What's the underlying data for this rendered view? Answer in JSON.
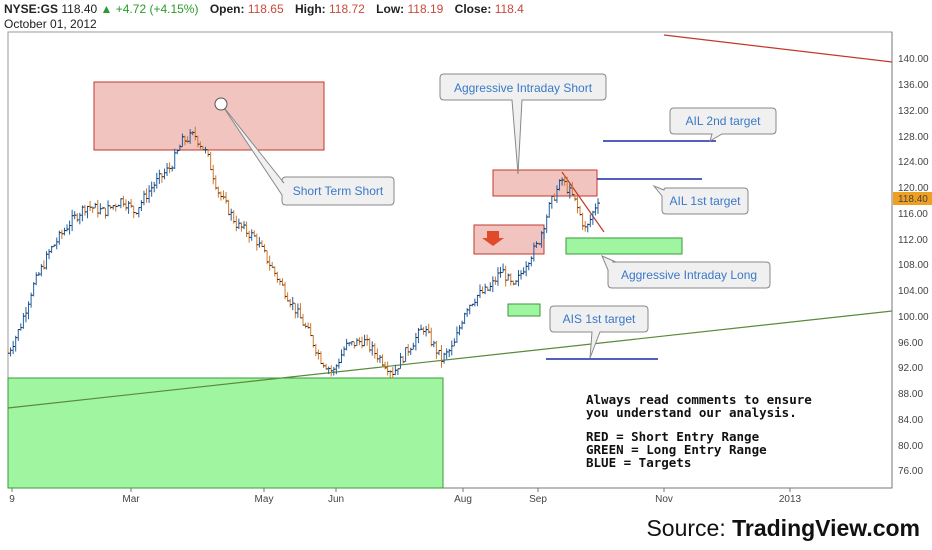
{
  "header": {
    "symbol": "NYSE:GS",
    "last": "118.40",
    "change_arrow": "▲",
    "change": "+4.72 (+4.15%)",
    "open_label": "Open:",
    "open": "118.65",
    "high_label": "High:",
    "high": "118.72",
    "low_label": "Low:",
    "low": "118.19",
    "close_label": "Close:",
    "close": "118.4",
    "date": "October 01, 2012"
  },
  "source": {
    "prefix": "Source: ",
    "brand": "TradingView.com"
  },
  "chart_data": {
    "type": "line",
    "ylim": [
      73,
      144
    ],
    "y_ticks": [
      "140.00",
      "136.00",
      "132.00",
      "128.00",
      "124.00",
      "120.00",
      "116.00",
      "112.00",
      "108.00",
      "104.00",
      "100.00",
      "96.00",
      "92.00",
      "88.00",
      "84.00",
      "80.00",
      "76.00"
    ],
    "price_marker": "118.40",
    "x_tick_labels": [
      "9",
      "Mar",
      "May",
      "Jun",
      "Aug",
      "Sep",
      "Nov",
      "2013"
    ],
    "price_series": [
      {
        "t": 0,
        "y": 94
      },
      {
        "t": 4,
        "y": 98
      },
      {
        "t": 8,
        "y": 104
      },
      {
        "t": 14,
        "y": 110
      },
      {
        "t": 20,
        "y": 114
      },
      {
        "t": 26,
        "y": 117
      },
      {
        "t": 32,
        "y": 116
      },
      {
        "t": 38,
        "y": 118
      },
      {
        "t": 42,
        "y": 116
      },
      {
        "t": 48,
        "y": 120
      },
      {
        "t": 54,
        "y": 123
      },
      {
        "t": 58,
        "y": 127
      },
      {
        "t": 62,
        "y": 128
      },
      {
        "t": 66,
        "y": 125
      },
      {
        "t": 70,
        "y": 119
      },
      {
        "t": 76,
        "y": 114
      },
      {
        "t": 82,
        "y": 112
      },
      {
        "t": 88,
        "y": 107
      },
      {
        "t": 94,
        "y": 102
      },
      {
        "t": 100,
        "y": 97
      },
      {
        "t": 104,
        "y": 93
      },
      {
        "t": 108,
        "y": 91
      },
      {
        "t": 112,
        "y": 95
      },
      {
        "t": 118,
        "y": 96
      },
      {
        "t": 124,
        "y": 93
      },
      {
        "t": 128,
        "y": 91
      },
      {
        "t": 132,
        "y": 94
      },
      {
        "t": 138,
        "y": 98
      },
      {
        "t": 144,
        "y": 93
      },
      {
        "t": 148,
        "y": 95
      },
      {
        "t": 152,
        "y": 101
      },
      {
        "t": 156,
        "y": 103
      },
      {
        "t": 160,
        "y": 104
      },
      {
        "t": 164,
        "y": 107
      },
      {
        "t": 168,
        "y": 104
      },
      {
        "t": 172,
        "y": 108
      },
      {
        "t": 176,
        "y": 111
      },
      {
        "t": 180,
        "y": 117
      },
      {
        "t": 184,
        "y": 121
      },
      {
        "t": 188,
        "y": 118
      },
      {
        "t": 192,
        "y": 113
      },
      {
        "t": 196,
        "y": 118
      }
    ],
    "zones": [
      {
        "kind": "short",
        "y_top": 136,
        "y_bottom": 126
      },
      {
        "kind": "short",
        "y_top": 122,
        "y_bottom": 118
      },
      {
        "kind": "short",
        "y_top": 113.5,
        "y_bottom": 109
      },
      {
        "kind": "long",
        "y_top": 112,
        "y_bottom": 109.5
      },
      {
        "kind": "long",
        "y_top": 102,
        "y_bottom": 100
      },
      {
        "kind": "long",
        "y_top": 90.5,
        "y_bottom": 73
      }
    ],
    "targets": [
      {
        "label": "AIL 2nd target",
        "y": 127
      },
      {
        "label": "AIL 1st target",
        "y": 121.5
      },
      {
        "label": "AIS 1st target",
        "y": 93.5
      }
    ],
    "callouts": [
      "Aggressive Intraday Short",
      "Short Term Short",
      "AIL 2nd target",
      "AIL 1st target",
      "Aggressive Intraday Long",
      "AIS 1st target"
    ],
    "notes": [
      "Always read comments to ensure",
      "you understand our analysis.",
      "",
      "RED = Short Entry Range",
      "GREEN = Long Entry Range",
      "BLUE = Targets"
    ]
  }
}
